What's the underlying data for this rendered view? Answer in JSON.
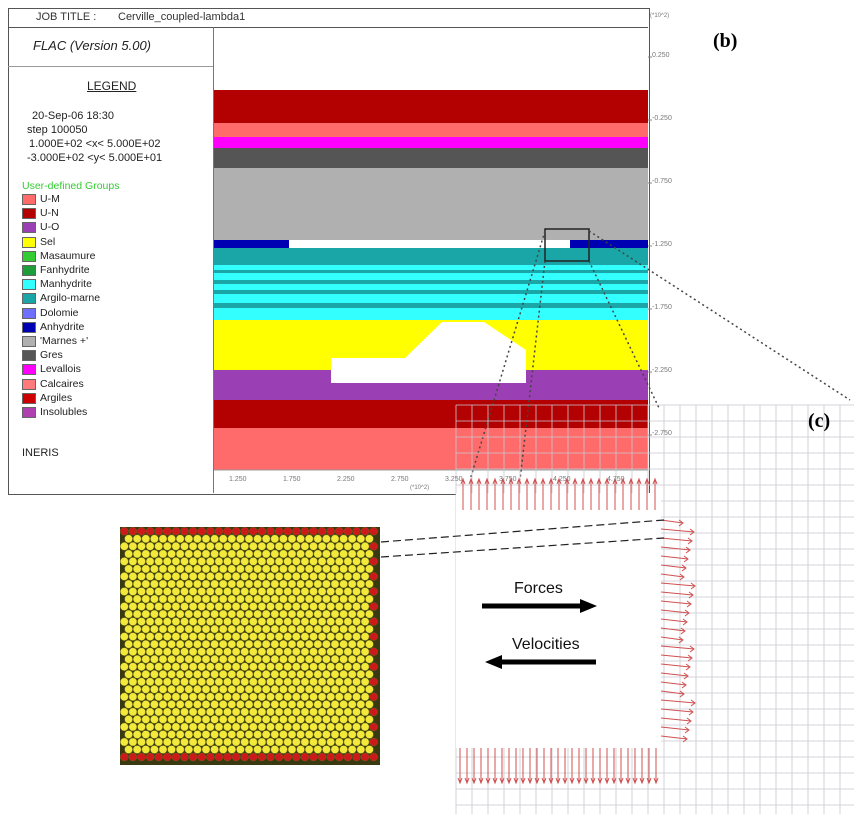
{
  "header": {
    "job_title_label": "JOB TITLE :",
    "job_title_value": "Cerville_coupled-lambda1",
    "program": "FLAC (Version 5.00)"
  },
  "legend": {
    "heading": "LEGEND",
    "date": "20-Sep-06  18:30",
    "step": "step    100050",
    "x_range": "1.000E+02 <x<  5.000E+02",
    "y_range": "-3.000E+02 <y<  5.000E+01",
    "groups_title": "User-defined Groups",
    "groups": [
      {
        "label": "U-M",
        "color": "#ff6b6b"
      },
      {
        "label": "U-N",
        "color": "#b30000"
      },
      {
        "label": "U-O",
        "color": "#9b3fb5"
      },
      {
        "label": "Sel",
        "color": "#ffff00"
      },
      {
        "label": "Masaumure",
        "color": "#33cc33"
      },
      {
        "label": "Fanhydrite",
        "color": "#1e9e3a"
      },
      {
        "label": "Manhydrite",
        "color": "#33ffff"
      },
      {
        "label": "Argilo-marne",
        "color": "#1aa6a6"
      },
      {
        "label": "Dolomie",
        "color": "#6e6eff"
      },
      {
        "label": "Anhydrite",
        "color": "#0000b3"
      },
      {
        "label": "'Marnes +'",
        "color": "#b0b0b0"
      },
      {
        "label": "Gres",
        "color": "#555555"
      },
      {
        "label": "Levallois",
        "color": "#ff00ff"
      },
      {
        "label": "Calcaires",
        "color": "#ff7a7a"
      },
      {
        "label": "Argiles",
        "color": "#cc0000"
      },
      {
        "label": "Insolubles",
        "color": "#b040b0"
      }
    ],
    "footer": "INERIS"
  },
  "axes": {
    "y_unit": "(*10^2)",
    "y_ticks": [
      "0.250",
      "-0.250",
      "-0.750",
      "-1.250",
      "-1.750",
      "-2.250",
      "-2.750"
    ],
    "x_ticks": [
      "1.250",
      "1.750",
      "2.250",
      "2.750",
      "3.250",
      "3.750",
      "4.250",
      "4.750"
    ],
    "x_unit": "(*10^2)"
  },
  "panels": {
    "b_label": "(b)",
    "c_label": "(c)"
  },
  "arrows": {
    "forces": "Forces",
    "velocities": "Velocities"
  },
  "colors": {
    "top_red": "#b30000",
    "salmon": "#ff6b6b",
    "magenta": "#ff00ff",
    "dark_grey": "#555555",
    "light_grey": "#b0b0b0",
    "blue": "#0000b3",
    "teal": "#1aa6a6",
    "cyan": "#33ffff",
    "yellow": "#ffff00",
    "purple": "#9b3fb5",
    "particle_yellow": "#f2e93a",
    "particle_red": "#cc1a1a",
    "arrow_pink": "#d05050"
  }
}
